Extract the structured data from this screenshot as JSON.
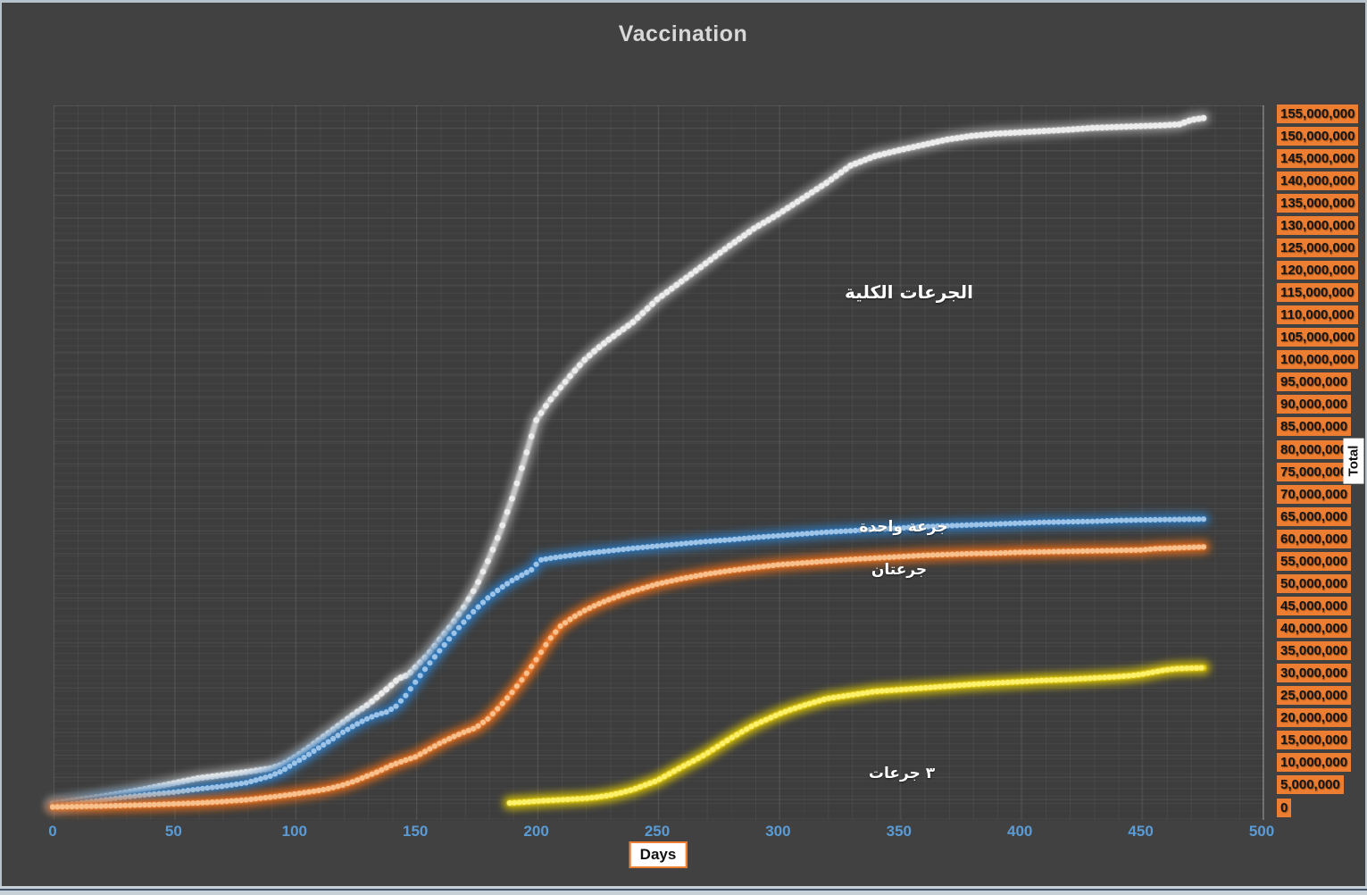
{
  "chart": {
    "title": "Vaccination",
    "x_axis_title": "Days",
    "y_axis_title": "Total"
  },
  "chart_data": {
    "type": "scatter",
    "title": "Vaccination",
    "xlabel": "Days",
    "ylabel": "Total",
    "values_unit": "millions of doses",
    "xlim": [
      0,
      500
    ],
    "ylim_millions": [
      0,
      155
    ],
    "grid": true,
    "legend_position": "labels-on-chart",
    "x_tick_color": "#5b9bd5",
    "y_tick_bg": "#ed7d31",
    "x_ticks": [
      0,
      50,
      100,
      150,
      200,
      250,
      300,
      350,
      400,
      450,
      500
    ],
    "y_tick_labels": [
      "155,000,000",
      "150,000,000",
      "145,000,000",
      "140,000,000",
      "135,000,000",
      "130,000,000",
      "125,000,000",
      "120,000,000",
      "115,000,000",
      "110,000,000",
      "105,000,000",
      "100,000,000",
      "95,000,000",
      "90,000,000",
      "85,000,000",
      "80,000,000",
      "75,000,000",
      "70,000,000",
      "65,000,000",
      "60,000,000",
      "55,000,000",
      "50,000,000",
      "45,000,000",
      "40,000,000",
      "35,000,000",
      "30,000,000",
      "25,000,000",
      "20,000,000",
      "15,000,000",
      "10,000,000",
      "5,000,000",
      "0"
    ],
    "series": [
      {
        "id": "total-doses",
        "name": "الجرعات الكلية",
        "color": "#c9c9c9",
        "center": "#ececec",
        "glow": "#9a9a9a",
        "points": [
          [
            0,
            0.8
          ],
          [
            10,
            1.6
          ],
          [
            20,
            2.4
          ],
          [
            30,
            3.3
          ],
          [
            40,
            4.3
          ],
          [
            50,
            5.4
          ],
          [
            60,
            6.5
          ],
          [
            70,
            7.2
          ],
          [
            80,
            7.9
          ],
          [
            90,
            8.7
          ],
          [
            95,
            9.6
          ],
          [
            100,
            11.2
          ],
          [
            105,
            13
          ],
          [
            110,
            15
          ],
          [
            115,
            17
          ],
          [
            120,
            19
          ],
          [
            125,
            21
          ],
          [
            130,
            22.8
          ],
          [
            135,
            25
          ],
          [
            140,
            27.3
          ],
          [
            143,
            28.8
          ],
          [
            147,
            29.6
          ],
          [
            150,
            31.3
          ],
          [
            155,
            34
          ],
          [
            160,
            37.5
          ],
          [
            165,
            40.8
          ],
          [
            170,
            44.7
          ],
          [
            175,
            49.2
          ],
          [
            180,
            55
          ],
          [
            185,
            61.5
          ],
          [
            190,
            69
          ],
          [
            195,
            77.5
          ],
          [
            200,
            86.5
          ],
          [
            205,
            90.5
          ],
          [
            210,
            93.8
          ],
          [
            215,
            97
          ],
          [
            220,
            100
          ],
          [
            225,
            102.4
          ],
          [
            230,
            104.5
          ],
          [
            240,
            108.4
          ],
          [
            250,
            113.5
          ],
          [
            260,
            117.5
          ],
          [
            270,
            121.5
          ],
          [
            280,
            125.5
          ],
          [
            290,
            129.3
          ],
          [
            300,
            132.5
          ],
          [
            310,
            136
          ],
          [
            320,
            139.5
          ],
          [
            330,
            143.4
          ],
          [
            340,
            145.5
          ],
          [
            350,
            146.8
          ],
          [
            360,
            148
          ],
          [
            370,
            149.2
          ],
          [
            380,
            150
          ],
          [
            390,
            150.5
          ],
          [
            400,
            150.8
          ],
          [
            410,
            151.1
          ],
          [
            420,
            151.4
          ],
          [
            430,
            151.8
          ],
          [
            440,
            152
          ],
          [
            450,
            152.2
          ],
          [
            460,
            152.4
          ],
          [
            466,
            152.6
          ],
          [
            471,
            153.6
          ],
          [
            476,
            154
          ]
        ]
      },
      {
        "id": "one-dose",
        "name": "جرعة واحدة",
        "color": "#2e75b6",
        "center": "#9dc3e6",
        "glow": "#2e75b6",
        "points": [
          [
            0,
            0.3
          ],
          [
            10,
            0.9
          ],
          [
            20,
            1.6
          ],
          [
            30,
            2.3
          ],
          [
            40,
            2.9
          ],
          [
            50,
            3.4
          ],
          [
            60,
            4.1
          ],
          [
            70,
            4.7
          ],
          [
            80,
            5.5
          ],
          [
            90,
            7
          ],
          [
            95,
            8.2
          ],
          [
            100,
            9.9
          ],
          [
            105,
            11.5
          ],
          [
            110,
            13.3
          ],
          [
            115,
            15
          ],
          [
            120,
            16.8
          ],
          [
            125,
            18.4
          ],
          [
            130,
            19.8
          ],
          [
            134,
            20.7
          ],
          [
            138,
            21.3
          ],
          [
            142,
            22.6
          ],
          [
            146,
            25
          ],
          [
            150,
            28
          ],
          [
            155,
            31.6
          ],
          [
            160,
            35
          ],
          [
            165,
            38.3
          ],
          [
            170,
            41.4
          ],
          [
            175,
            44.3
          ],
          [
            180,
            46.8
          ],
          [
            185,
            48.9
          ],
          [
            190,
            50.7
          ],
          [
            195,
            52.2
          ],
          [
            199,
            53.4
          ],
          [
            201,
            55.2
          ],
          [
            205,
            55.6
          ],
          [
            210,
            56
          ],
          [
            220,
            56.7
          ],
          [
            230,
            57.3
          ],
          [
            240,
            57.9
          ],
          [
            250,
            58.4
          ],
          [
            260,
            58.9
          ],
          [
            270,
            59.4
          ],
          [
            280,
            59.8
          ],
          [
            290,
            60.3
          ],
          [
            300,
            60.7
          ],
          [
            310,
            61.1
          ],
          [
            320,
            61.5
          ],
          [
            330,
            61.8
          ],
          [
            340,
            62.1
          ],
          [
            350,
            62.4
          ],
          [
            360,
            62.7
          ],
          [
            370,
            62.9
          ],
          [
            380,
            63.1
          ],
          [
            390,
            63.3
          ],
          [
            400,
            63.5
          ],
          [
            410,
            63.7
          ],
          [
            420,
            63.8
          ],
          [
            430,
            63.9
          ],
          [
            440,
            64.1
          ],
          [
            450,
            64.2
          ],
          [
            460,
            64.3
          ],
          [
            476,
            64.4
          ]
        ]
      },
      {
        "id": "two-doses",
        "name": "جرعتان",
        "color": "#ed7d31",
        "center": "#f7c08c",
        "glow": "#e86c14",
        "points": [
          [
            0,
            0.1
          ],
          [
            20,
            0.3
          ],
          [
            40,
            0.6
          ],
          [
            50,
            0.8
          ],
          [
            60,
            1.0
          ],
          [
            70,
            1.3
          ],
          [
            80,
            1.7
          ],
          [
            90,
            2.3
          ],
          [
            100,
            3.0
          ],
          [
            110,
            3.8
          ],
          [
            115,
            4.3
          ],
          [
            120,
            5.0
          ],
          [
            125,
            5.9
          ],
          [
            130,
            7.0
          ],
          [
            135,
            8.1
          ],
          [
            140,
            9.4
          ],
          [
            145,
            10.4
          ],
          [
            150,
            11.3
          ],
          [
            155,
            12.8
          ],
          [
            160,
            14.3
          ],
          [
            165,
            15.6
          ],
          [
            170,
            16.8
          ],
          [
            175,
            17.8
          ],
          [
            180,
            19.8
          ],
          [
            185,
            22.6
          ],
          [
            190,
            25.7
          ],
          [
            195,
            29.2
          ],
          [
            200,
            33
          ],
          [
            205,
            37.2
          ],
          [
            210,
            40.5
          ],
          [
            215,
            42.4
          ],
          [
            220,
            44
          ],
          [
            225,
            45.3
          ],
          [
            230,
            46.4
          ],
          [
            235,
            47.4
          ],
          [
            240,
            48.3
          ],
          [
            245,
            49.1
          ],
          [
            250,
            49.9
          ],
          [
            260,
            51.1
          ],
          [
            270,
            52.1
          ],
          [
            280,
            52.9
          ],
          [
            290,
            53.6
          ],
          [
            300,
            54.2
          ],
          [
            310,
            54.6
          ],
          [
            320,
            55
          ],
          [
            330,
            55.4
          ],
          [
            340,
            55.7
          ],
          [
            350,
            56
          ],
          [
            360,
            56.3
          ],
          [
            370,
            56.5
          ],
          [
            380,
            56.7
          ],
          [
            390,
            56.8
          ],
          [
            400,
            57
          ],
          [
            410,
            57.1
          ],
          [
            420,
            57.2
          ],
          [
            430,
            57.3
          ],
          [
            440,
            57.4
          ],
          [
            450,
            57.5
          ],
          [
            456,
            57.8
          ],
          [
            466,
            58
          ],
          [
            476,
            58.2
          ]
        ]
      },
      {
        "id": "three-doses",
        "name": "٣ جرعات",
        "color": "#f2d713",
        "center": "#fdf06a",
        "glow": "#ddc700",
        "points": [
          [
            189,
            1.0
          ],
          [
            195,
            1.2
          ],
          [
            200,
            1.4
          ],
          [
            210,
            1.7
          ],
          [
            220,
            2.0
          ],
          [
            225,
            2.3
          ],
          [
            230,
            2.7
          ],
          [
            235,
            3.3
          ],
          [
            240,
            4.0
          ],
          [
            245,
            5.0
          ],
          [
            250,
            6.0
          ],
          [
            255,
            7.5
          ],
          [
            260,
            9.0
          ],
          [
            265,
            10.4
          ],
          [
            270,
            11.9
          ],
          [
            275,
            13.6
          ],
          [
            280,
            15.3
          ],
          [
            285,
            16.9
          ],
          [
            290,
            18.4
          ],
          [
            295,
            19.6
          ],
          [
            300,
            20.8
          ],
          [
            305,
            21.8
          ],
          [
            310,
            22.7
          ],
          [
            315,
            23.5
          ],
          [
            320,
            24.3
          ],
          [
            325,
            24.7
          ],
          [
            330,
            25.1
          ],
          [
            340,
            25.9
          ],
          [
            350,
            26.3
          ],
          [
            360,
            26.7
          ],
          [
            370,
            27.1
          ],
          [
            380,
            27.5
          ],
          [
            390,
            27.8
          ],
          [
            400,
            28.1
          ],
          [
            410,
            28.4
          ],
          [
            420,
            28.6
          ],
          [
            430,
            28.9
          ],
          [
            440,
            29.2
          ],
          [
            445,
            29.4
          ],
          [
            450,
            29.7
          ],
          [
            455,
            30.2
          ],
          [
            460,
            30.7
          ],
          [
            465,
            31.0
          ],
          [
            470,
            31.1
          ],
          [
            476,
            31.2
          ]
        ]
      }
    ]
  }
}
